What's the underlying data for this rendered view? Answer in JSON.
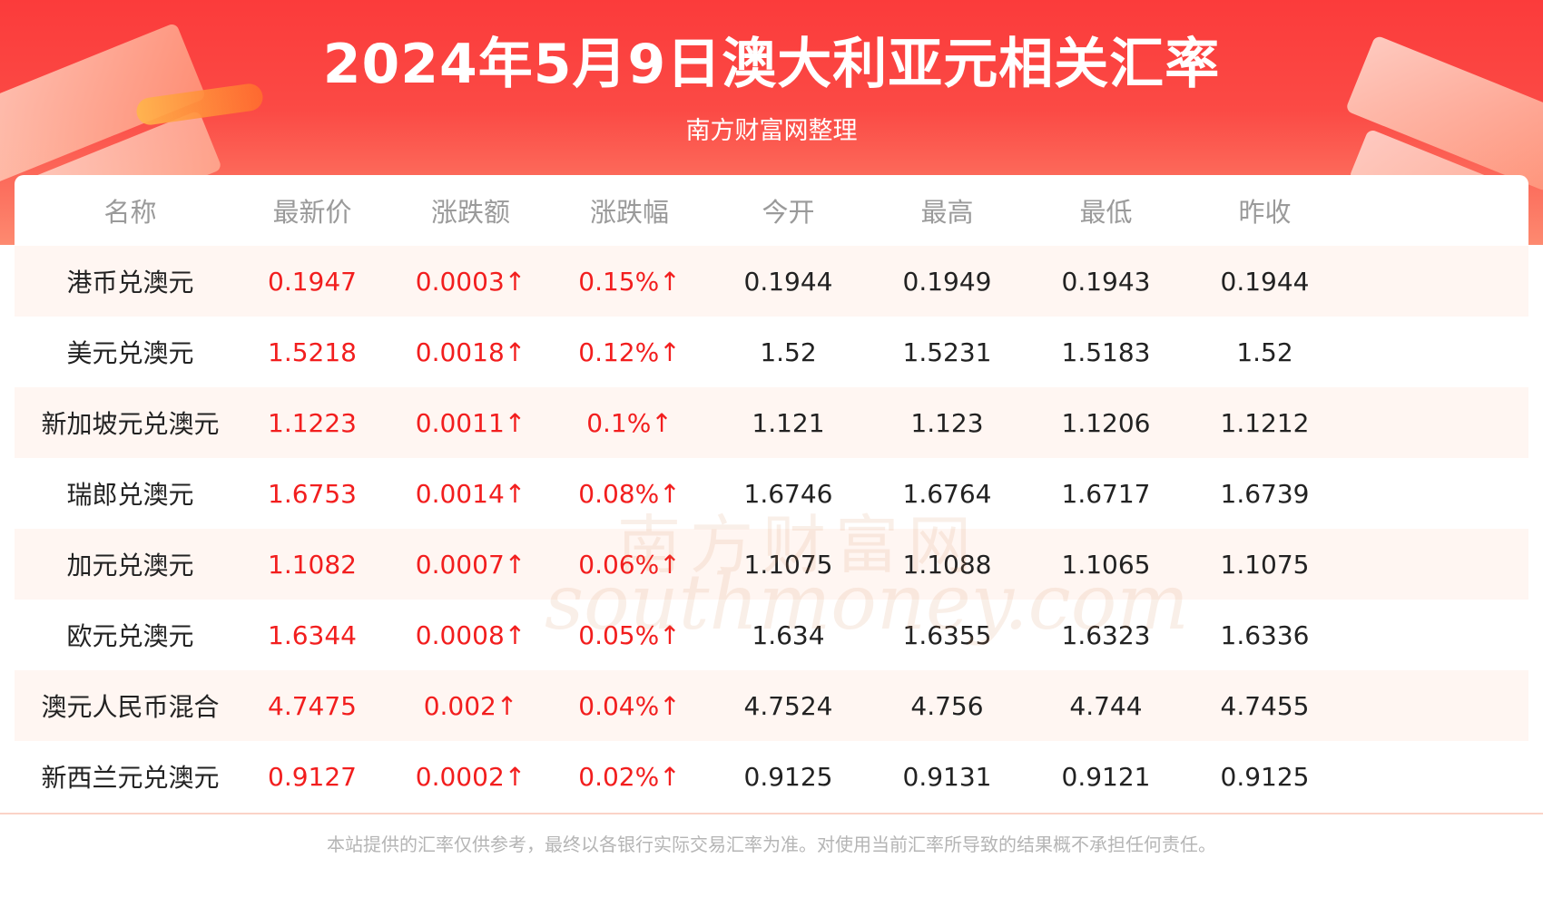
{
  "header": {
    "title": "2024年5月9日澳大利亚元相关汇率",
    "subtitle": "南方财富网整理"
  },
  "table": {
    "columns": [
      "名称",
      "最新价",
      "涨跌额",
      "涨跌幅",
      "今开",
      "最高",
      "最低",
      "昨收"
    ],
    "rows": [
      {
        "name": "港币兑澳元",
        "latest": "0.1947",
        "change": "0.0003↑",
        "pct": "0.15%↑",
        "open": "0.1944",
        "high": "0.1949",
        "low": "0.1943",
        "prev": "0.1944"
      },
      {
        "name": "美元兑澳元",
        "latest": "1.5218",
        "change": "0.0018↑",
        "pct": "0.12%↑",
        "open": "1.52",
        "high": "1.5231",
        "low": "1.5183",
        "prev": "1.52"
      },
      {
        "name": "新加坡元兑澳元",
        "latest": "1.1223",
        "change": "0.0011↑",
        "pct": "0.1%↑",
        "open": "1.121",
        "high": "1.123",
        "low": "1.1206",
        "prev": "1.1212"
      },
      {
        "name": "瑞郎兑澳元",
        "latest": "1.6753",
        "change": "0.0014↑",
        "pct": "0.08%↑",
        "open": "1.6746",
        "high": "1.6764",
        "low": "1.6717",
        "prev": "1.6739"
      },
      {
        "name": "加元兑澳元",
        "latest": "1.1082",
        "change": "0.0007↑",
        "pct": "0.06%↑",
        "open": "1.1075",
        "high": "1.1088",
        "low": "1.1065",
        "prev": "1.1075"
      },
      {
        "name": "欧元兑澳元",
        "latest": "1.6344",
        "change": "0.0008↑",
        "pct": "0.05%↑",
        "open": "1.634",
        "high": "1.6355",
        "low": "1.6323",
        "prev": "1.6336"
      },
      {
        "name": "澳元人民币混合",
        "latest": "4.7475",
        "change": "0.002↑",
        "pct": "0.04%↑",
        "open": "4.7524",
        "high": "4.756",
        "low": "4.744",
        "prev": "4.7455"
      },
      {
        "name": "新西兰元兑澳元",
        "latest": "0.9127",
        "change": "0.0002↑",
        "pct": "0.02%↑",
        "open": "0.9125",
        "high": "0.9131",
        "low": "0.9121",
        "prev": "0.9125"
      }
    ]
  },
  "watermark": {
    "cn": "南方财富网",
    "en": "southmoney.com"
  },
  "footer": {
    "disclaimer": "本站提供的汇率仅供参考，最终以各银行实际交易汇率为准。对使用当前汇率所导致的结果概不承担任何责任。"
  },
  "colors": {
    "header_red": "#fb3b3b",
    "up_red": "#f21e1e",
    "row_stripe": "#fff6f2",
    "header_text_gray": "#9a9a9a"
  }
}
